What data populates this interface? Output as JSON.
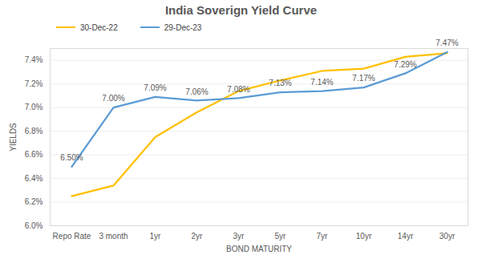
{
  "chart_data": {
    "type": "line",
    "title": "India Soverign Yield Curve",
    "x_label": "BOND MATURITY",
    "y_label": "YIELDS",
    "categories": [
      "Repo Rate",
      "3 month",
      "1yr",
      "2yr",
      "3yr",
      "5yr",
      "7yr",
      "10yr",
      "14yr",
      "30yr"
    ],
    "series": [
      {
        "name": "30-Dec-22",
        "color": "#FFC000",
        "values": [
          6.25,
          6.34,
          6.75,
          6.96,
          7.14,
          7.23,
          7.31,
          7.33,
          7.43,
          7.46
        ]
      },
      {
        "name": "29-Dec-23",
        "color": "#5B9BD5",
        "values": [
          6.5,
          7.0,
          7.09,
          7.06,
          7.08,
          7.13,
          7.14,
          7.17,
          7.29,
          7.47
        ],
        "data_labels": true,
        "value_labels": [
          "6.50%",
          "7.00%",
          "7.09%",
          "7.06%",
          "7.08%",
          "7.13%",
          "7.14%",
          "7.17%",
          "7.29%",
          "7.47%"
        ]
      }
    ],
    "ylim": [
      6.0,
      7.5
    ],
    "yticks": [
      {
        "value": 6.0,
        "label": "6.0%"
      },
      {
        "value": 6.2,
        "label": "6.2%"
      },
      {
        "value": 6.4,
        "label": "6.4%"
      },
      {
        "value": 6.6,
        "label": "6.6%"
      },
      {
        "value": 6.8,
        "label": "6.8%"
      },
      {
        "value": 7.0,
        "label": "7.0%"
      },
      {
        "value": 7.2,
        "label": "7.2%"
      },
      {
        "value": 7.4,
        "label": "7.4%"
      }
    ],
    "grid": true,
    "legend": "upper left"
  }
}
